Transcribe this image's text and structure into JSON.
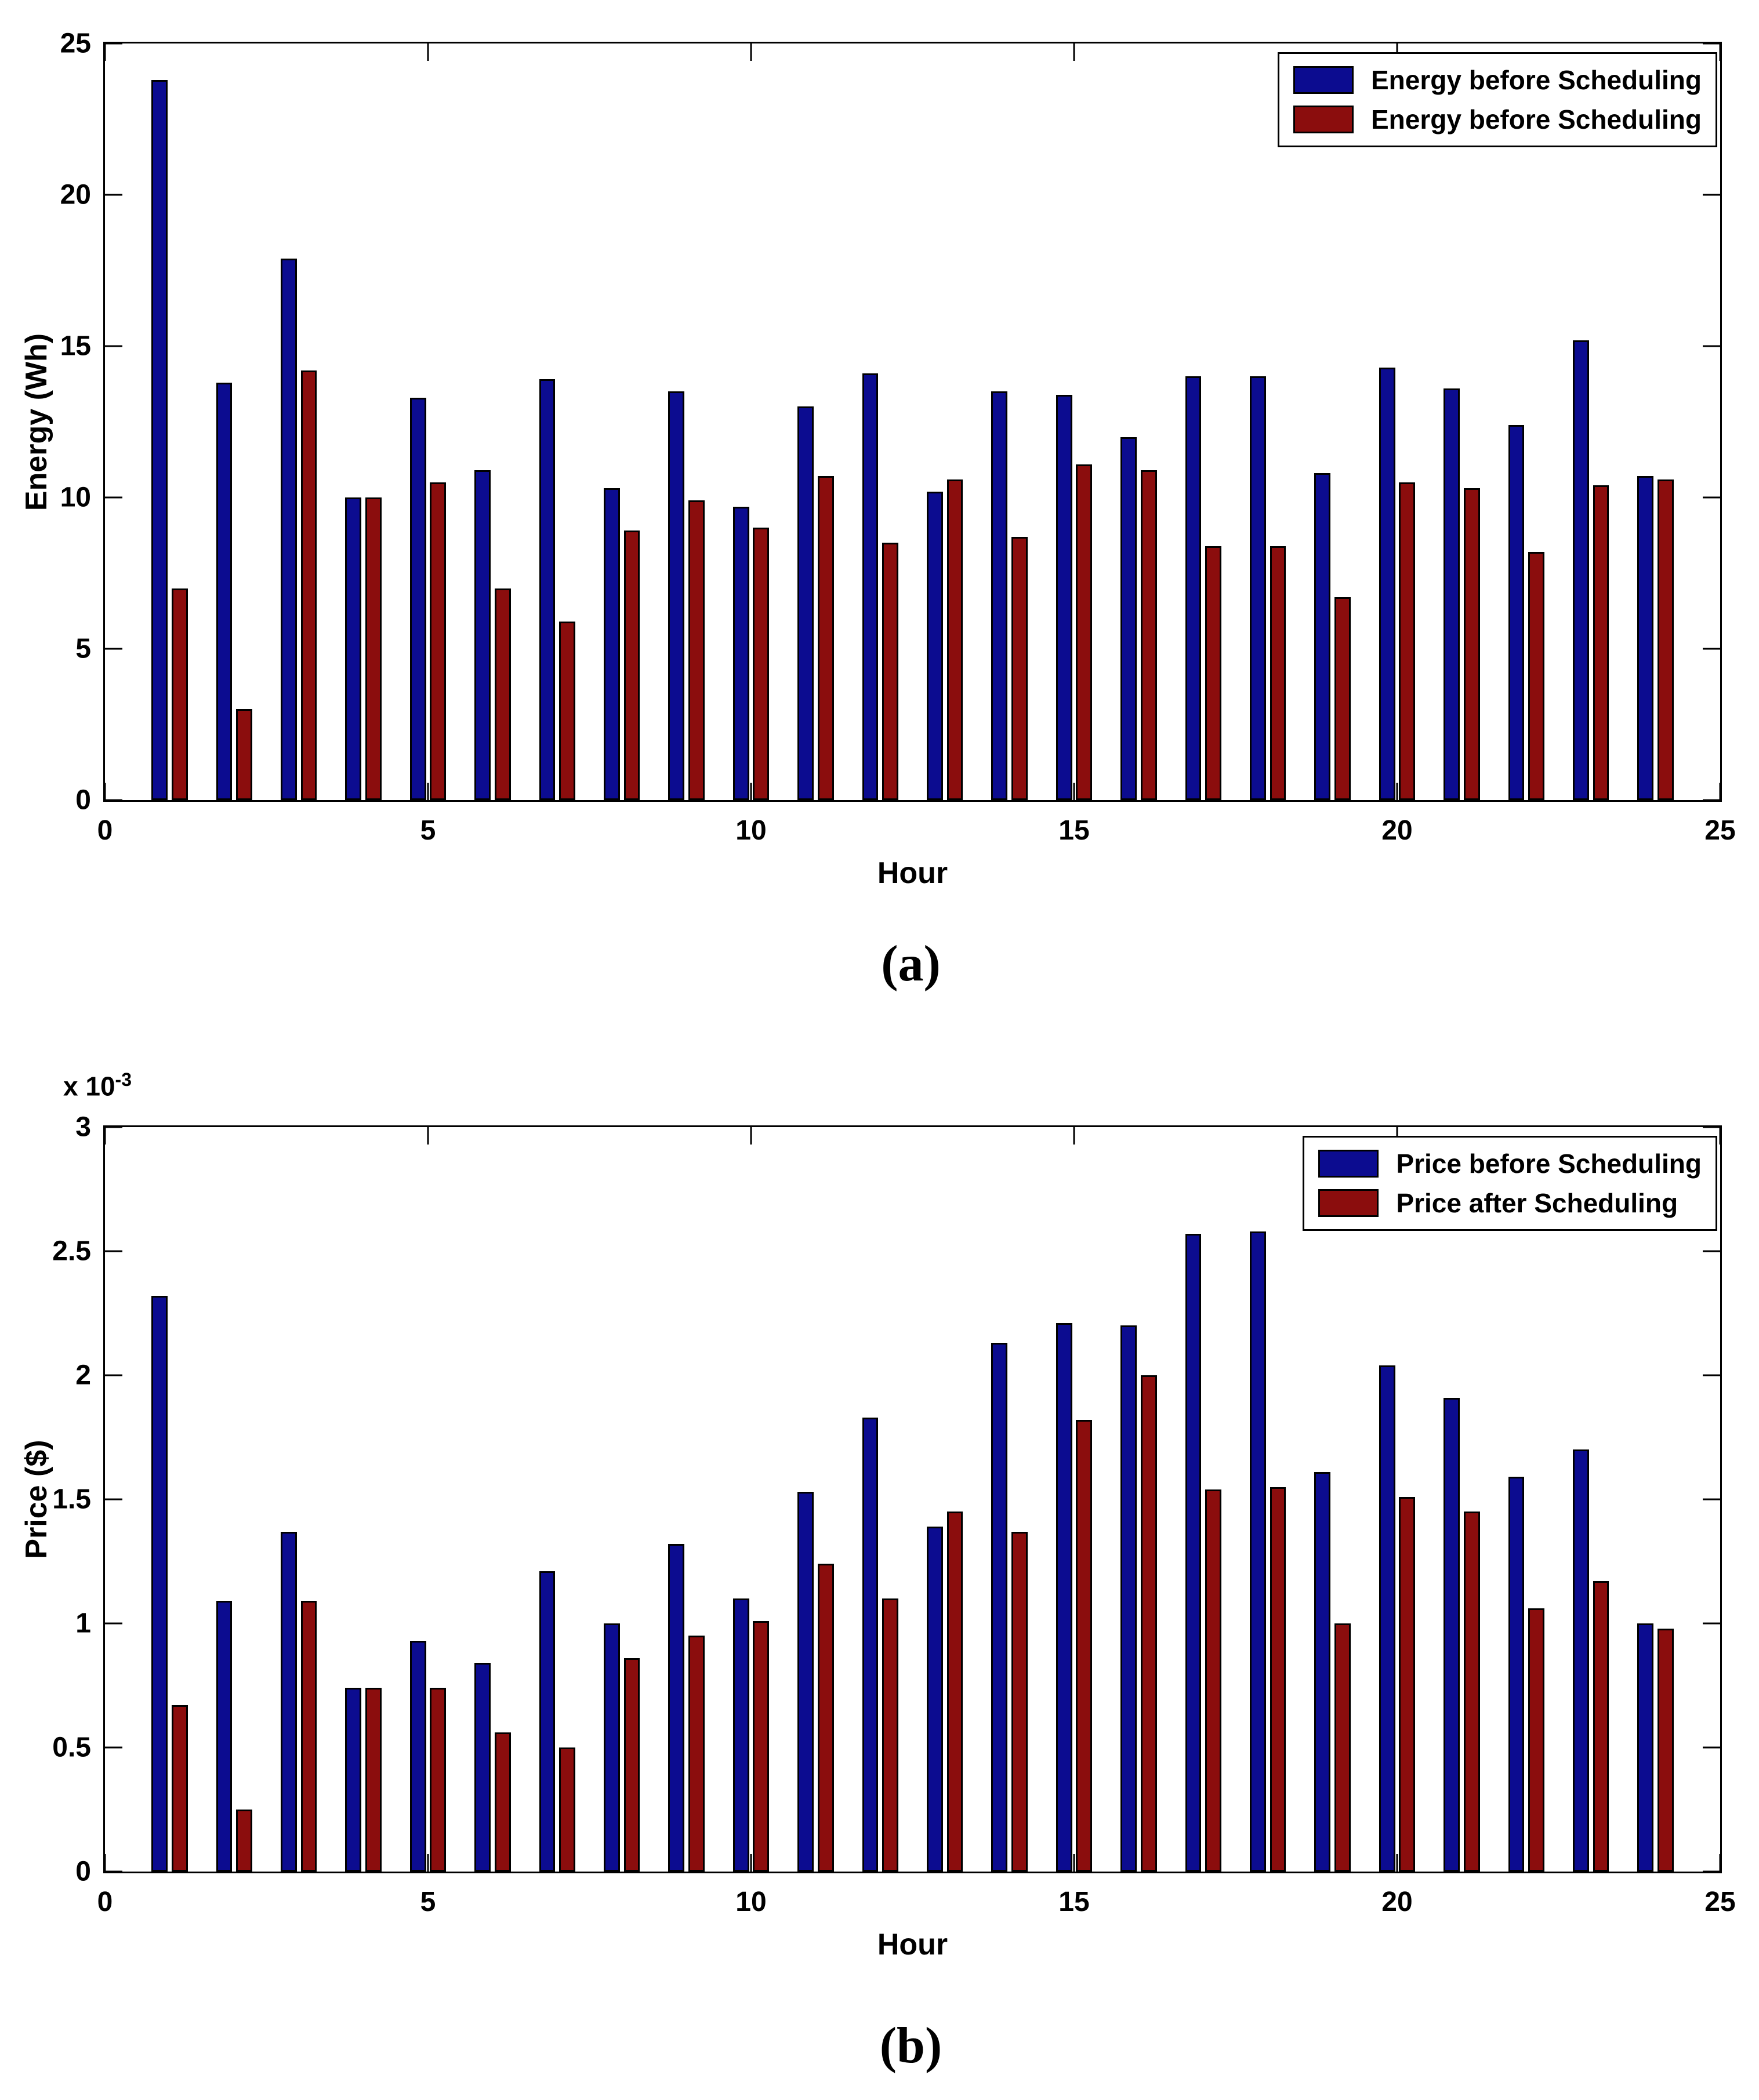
{
  "figure": {
    "background": "#ffffff",
    "series_colors": {
      "before": "#0c0c90",
      "after": "#8b0d0d"
    }
  },
  "chart_data": [
    {
      "type": "bar",
      "panel": "a",
      "caption": "(a)",
      "xlabel": "Hour",
      "ylabel": "Energy (Wh)",
      "exponent_base": "",
      "exponent_power": "",
      "x": [
        1,
        2,
        3,
        4,
        5,
        6,
        7,
        8,
        9,
        10,
        11,
        12,
        13,
        14,
        15,
        16,
        17,
        18,
        19,
        20,
        21,
        22,
        23,
        24
      ],
      "series": [
        {
          "name": "Energy before Scheduling",
          "color": "#0c0c90",
          "values": [
            23.8,
            13.8,
            17.9,
            10.0,
            13.3,
            10.9,
            13.9,
            10.3,
            13.5,
            9.7,
            13.0,
            14.1,
            10.2,
            13.5,
            13.4,
            12.0,
            14.0,
            14.0,
            10.8,
            14.3,
            13.6,
            12.4,
            15.2,
            10.7
          ]
        },
        {
          "name": "Energy before Scheduling",
          "color": "#8b0d0d",
          "values": [
            7.0,
            3.0,
            14.2,
            10.0,
            10.5,
            7.0,
            5.9,
            8.9,
            9.9,
            9.0,
            10.7,
            8.5,
            10.6,
            8.7,
            11.1,
            10.9,
            8.4,
            8.4,
            6.7,
            10.5,
            10.3,
            8.2,
            10.4,
            10.6
          ]
        }
      ],
      "xlim": [
        0,
        25
      ],
      "ylim": [
        0,
        25
      ],
      "x_ticks": [
        0,
        5,
        10,
        15,
        20,
        25
      ],
      "x_tick_labels": [
        "0",
        "5",
        "10",
        "15",
        "20",
        "25"
      ],
      "y_ticks": [
        0,
        5,
        10,
        15,
        20,
        25
      ],
      "y_tick_labels": [
        "0",
        "5",
        "10",
        "15",
        "20",
        "25"
      ],
      "grid": false,
      "legend_position": "top-right"
    },
    {
      "type": "bar",
      "panel": "b",
      "caption": "(b)",
      "xlabel": "Hour",
      "ylabel": "Price ($)",
      "exponent_base": "x 10",
      "exponent_power": "-3",
      "units_note": "values in units of 10^-3 dollars",
      "x": [
        1,
        2,
        3,
        4,
        5,
        6,
        7,
        8,
        9,
        10,
        11,
        12,
        13,
        14,
        15,
        16,
        17,
        18,
        19,
        20,
        21,
        22,
        23,
        24
      ],
      "series": [
        {
          "name": "Price before Scheduling",
          "color": "#0c0c90",
          "values": [
            2.32,
            1.09,
            1.37,
            0.74,
            0.93,
            0.84,
            1.21,
            1.0,
            1.32,
            1.1,
            1.53,
            1.83,
            1.39,
            2.13,
            2.21,
            2.2,
            2.57,
            2.58,
            1.61,
            2.04,
            1.91,
            1.59,
            1.7,
            1.0
          ]
        },
        {
          "name": "Price after Scheduling",
          "color": "#8b0d0d",
          "values": [
            0.67,
            0.25,
            1.09,
            0.74,
            0.74,
            0.56,
            0.5,
            0.86,
            0.95,
            1.01,
            1.24,
            1.1,
            1.45,
            1.37,
            1.82,
            2.0,
            1.54,
            1.55,
            1.0,
            1.51,
            1.45,
            1.06,
            1.17,
            0.98
          ]
        }
      ],
      "xlim": [
        0,
        25
      ],
      "ylim": [
        0,
        3
      ],
      "x_ticks": [
        0,
        5,
        10,
        15,
        20,
        25
      ],
      "x_tick_labels": [
        "0",
        "5",
        "10",
        "15",
        "20",
        "25"
      ],
      "y_ticks": [
        0,
        0.5,
        1,
        1.5,
        2,
        2.5,
        3
      ],
      "y_tick_labels": [
        "0",
        "0.5",
        "1",
        "1.5",
        "2",
        "2.5",
        "3"
      ],
      "grid": false,
      "legend_position": "top-right"
    }
  ]
}
